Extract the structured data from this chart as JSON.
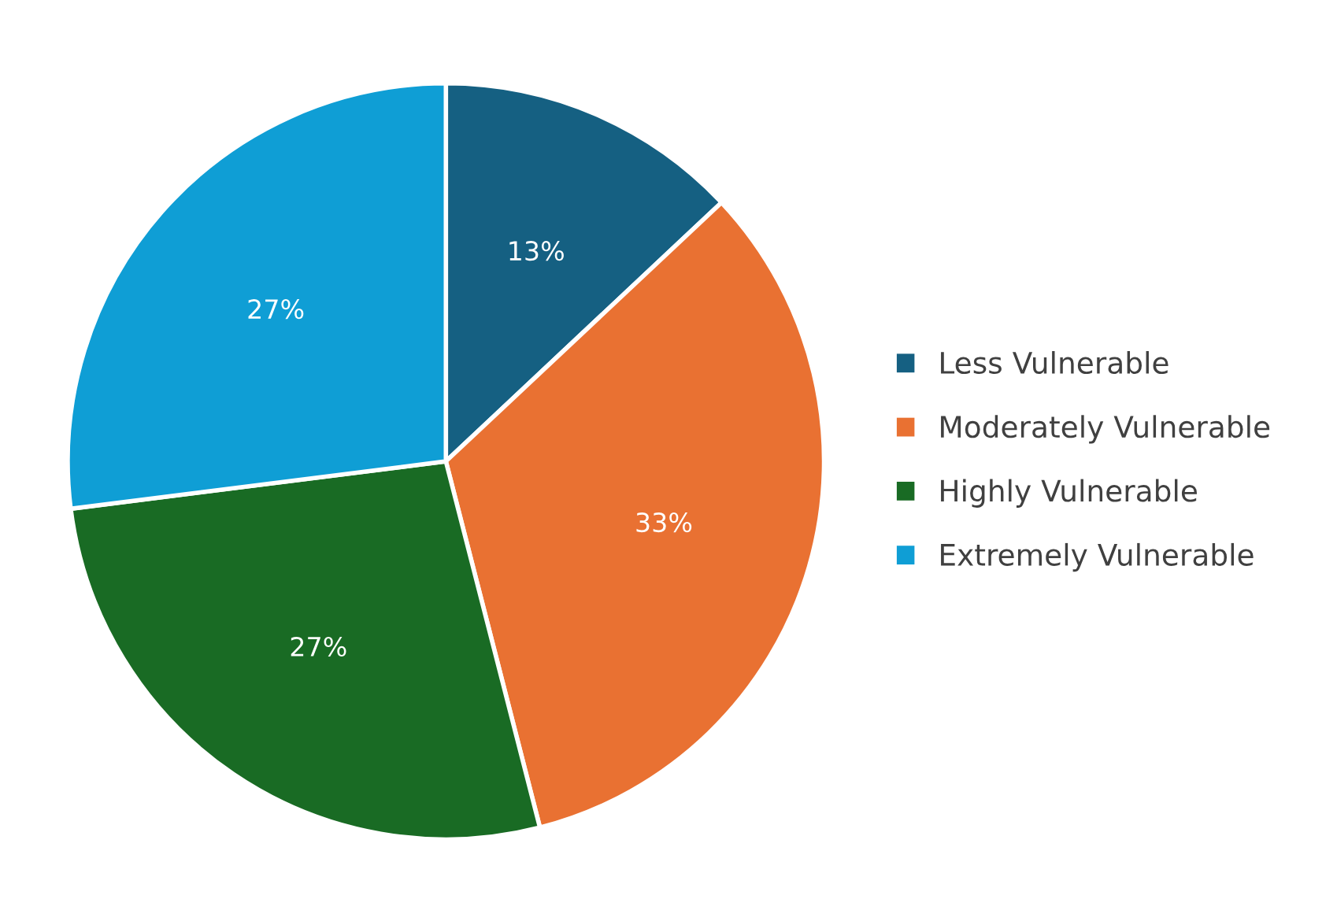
{
  "chart_data": {
    "type": "pie",
    "categories": [
      "Less Vulnerable",
      "Moderately Vulnerable",
      "Highly Vulnerable",
      "Extremely Vulnerable"
    ],
    "values": [
      13,
      33,
      27,
      27
    ],
    "colors": [
      "#156082",
      "#e97132",
      "#196b24",
      "#0f9ed5"
    ],
    "value_labels": [
      "13%",
      "33%",
      "27%",
      "27%"
    ],
    "legend": "right"
  }
}
